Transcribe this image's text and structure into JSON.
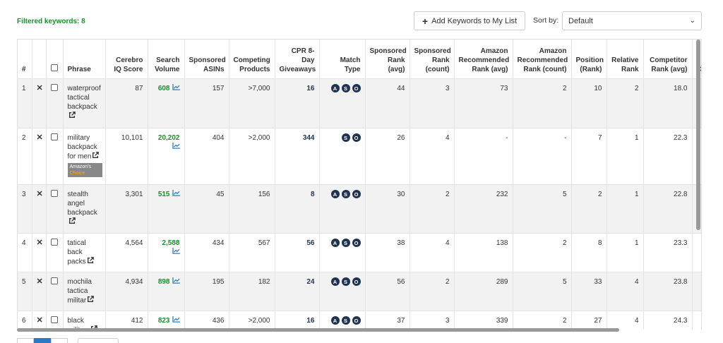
{
  "filter": {
    "label": "Filtered keywords: 8"
  },
  "toolbar": {
    "add_label": "Add Keywords to My List",
    "sort_label": "Sort by:",
    "sort_value": "Default"
  },
  "columns": [
    "#",
    "",
    "",
    "Phrase",
    "Cerebro IQ Score",
    "Search Volume",
    "Sponsored ASINs",
    "Competing Products",
    "CPR 8-Day Giveaways",
    "Match Type",
    "Sponsored Rank (avg)",
    "Sponsored Rank (count)",
    "Amazon Recommended Rank (avg)",
    "Amazon Recommended Rank (count)",
    "Position (Rank)",
    "Relative Rank",
    "Competitor Rank (avg)",
    "Co"
  ],
  "rows": [
    {
      "num": "1",
      "phrase": "waterproof tactical backpack",
      "iq": "87",
      "volume": "608",
      "sponsored_asins": "157",
      "competing": ">7,000",
      "cpr": "16",
      "match": [
        "A",
        "S",
        "O"
      ],
      "spons_rank_avg": "44",
      "spons_rank_count": "3",
      "amz_rank_avg": "73",
      "amz_rank_count": "2",
      "position": "10",
      "relative": "2",
      "comp_rank": "18.0"
    },
    {
      "num": "2",
      "phrase": "military backpack for men",
      "iq": "10,101",
      "volume": "20,202",
      "sponsored_asins": "404",
      "competing": ">2,000",
      "cpr": "344",
      "match": [
        "S",
        "O"
      ],
      "spons_rank_avg": "26",
      "spons_rank_count": "4",
      "amz_rank_avg": "-",
      "amz_rank_count": "-",
      "position": "7",
      "relative": "1",
      "comp_rank": "22.3",
      "badge_line1": "Amazon's",
      "badge_line2": "Choice"
    },
    {
      "num": "3",
      "phrase": "stealth angel backpack",
      "iq": "3,301",
      "volume": "515",
      "sponsored_asins": "45",
      "competing": "156",
      "cpr": "8",
      "match": [
        "A",
        "S",
        "O"
      ],
      "spons_rank_avg": "30",
      "spons_rank_count": "2",
      "amz_rank_avg": "232",
      "amz_rank_count": "5",
      "position": "2",
      "relative": "1",
      "comp_rank": "22.8"
    },
    {
      "num": "4",
      "phrase": "tatical back packs",
      "iq": "4,564",
      "volume": "2,588",
      "sponsored_asins": "434",
      "competing": "567",
      "cpr": "56",
      "match": [
        "A",
        "S",
        "O"
      ],
      "spons_rank_avg": "38",
      "spons_rank_count": "4",
      "amz_rank_avg": "138",
      "amz_rank_count": "2",
      "position": "8",
      "relative": "1",
      "comp_rank": "23.3"
    },
    {
      "num": "5",
      "phrase": "mochila tactica militar",
      "iq": "4,934",
      "volume": "898",
      "sponsored_asins": "195",
      "competing": "182",
      "cpr": "24",
      "match": [
        "A",
        "S",
        "O"
      ],
      "spons_rank_avg": "56",
      "spons_rank_count": "2",
      "amz_rank_avg": "289",
      "amz_rank_count": "5",
      "position": "33",
      "relative": "4",
      "comp_rank": "23.8"
    },
    {
      "num": "6",
      "phrase": "black military",
      "iq": "412",
      "volume": "823",
      "sponsored_asins": "436",
      "competing": ">2,000",
      "cpr": "16",
      "match": [
        "A",
        "S",
        "O"
      ],
      "spons_rank_avg": "37",
      "spons_rank_count": "3",
      "amz_rank_avg": "339",
      "amz_rank_count": "2",
      "position": "27",
      "relative": "4",
      "comp_rank": "24.3"
    }
  ],
  "colors": {
    "accent_green": "#1e8b2e",
    "badge_navy": "#1f3350",
    "pager_active": "#2b79c2"
  }
}
